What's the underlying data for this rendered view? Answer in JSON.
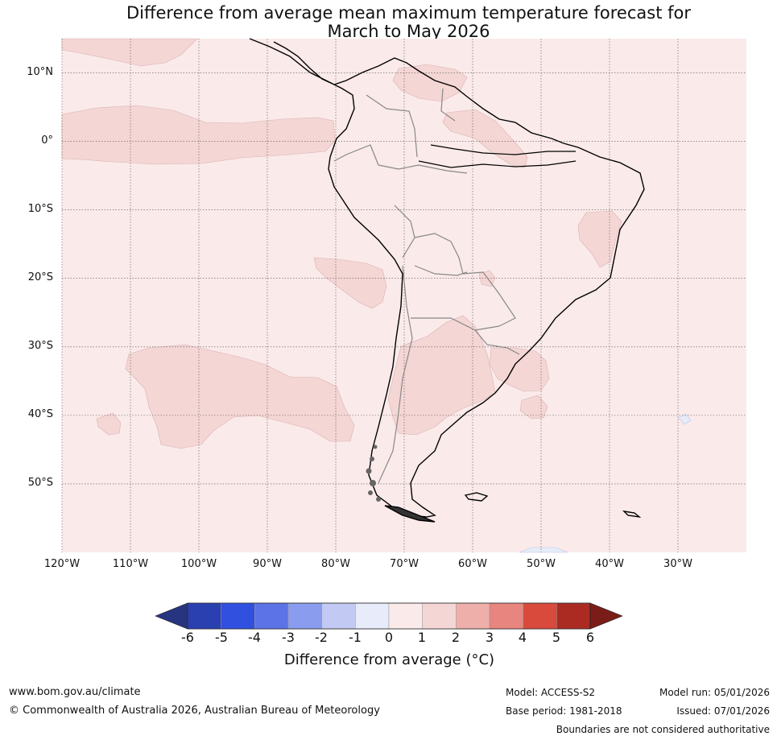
{
  "title": {
    "line1": "Difference from average mean maximum temperature forecast for",
    "line2": "March to May 2026"
  },
  "map": {
    "lat_labels": [
      "10°N",
      "0°",
      "10°S",
      "20°S",
      "30°S",
      "40°S",
      "50°S"
    ],
    "lon_labels": [
      "120°W",
      "110°W",
      "100°W",
      "90°W",
      "80°W",
      "70°W",
      "60°W",
      "50°W",
      "40°W",
      "30°W"
    ],
    "lat_range": [
      -60,
      15
    ],
    "lon_range": [
      -120,
      -20
    ],
    "background_anomaly_class": "0 to 1",
    "colors": {
      "base": "#fbeaea",
      "warm1": "#f4d6d5",
      "cool_faint": "#e6ecf8",
      "coast": "#000000",
      "border": "#888888",
      "grid": "#555555"
    }
  },
  "colorbar": {
    "tick_labels": [
      "-6",
      "-5",
      "-4",
      "-3",
      "-2",
      "-1",
      "0",
      "1",
      "2",
      "3",
      "4",
      "5",
      "6"
    ],
    "colors": [
      "#27347f",
      "#2a3fb0",
      "#3150e0",
      "#5b73e6",
      "#8a9ced",
      "#c2caf3",
      "#e8ecfa",
      "#fbeaea",
      "#f4d6d5",
      "#eeafab",
      "#e8857e",
      "#d94a3d",
      "#ab2b22",
      "#7a1d18"
    ],
    "label": "Difference from average (°C)"
  },
  "footer": {
    "website": "www.bom.gov.au/climate",
    "copyright": "© Commonwealth of Australia 2026, Australian Bureau of Meteorology",
    "model": "Model: ACCESS-S2",
    "base_period": "Base period: 1981-2018",
    "model_run": "Model run: 05/01/2026",
    "issued": "Issued: 07/01/2026",
    "disclaimer": "Boundaries are not considered authoritative"
  }
}
